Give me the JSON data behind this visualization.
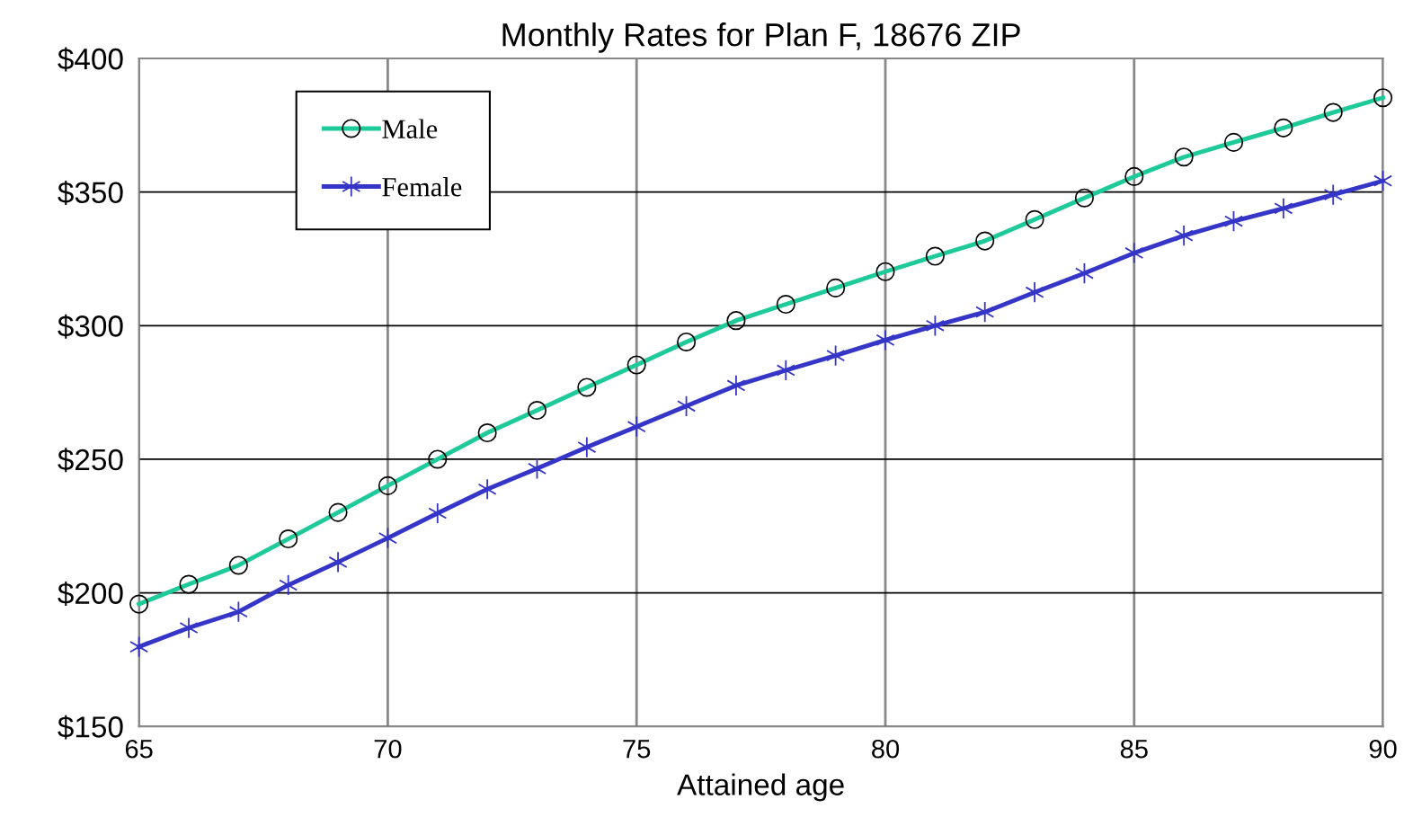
{
  "chart_data": {
    "type": "line",
    "title": "Monthly Rates for Plan F, 18676 ZIP",
    "xlabel": "Attained age",
    "x": [
      65,
      66,
      67,
      68,
      69,
      70,
      71,
      72,
      73,
      74,
      75,
      76,
      77,
      78,
      79,
      80,
      81,
      82,
      83,
      84,
      85,
      86,
      87,
      88,
      89,
      90
    ],
    "xlim": [
      65,
      90
    ],
    "xticks": [
      65,
      70,
      75,
      80,
      85,
      90
    ],
    "ylim": [
      150,
      400
    ],
    "yticks": [
      {
        "value": 150,
        "label": "$150"
      },
      {
        "value": 200,
        "label": "$200"
      },
      {
        "value": 250,
        "label": "$250"
      },
      {
        "value": 300,
        "label": "$300"
      },
      {
        "value": 350,
        "label": "$350"
      },
      {
        "value": 400,
        "label": "$400"
      }
    ],
    "grid": true,
    "legend": "top left",
    "line_style": "solid",
    "series": [
      {
        "name": "Male",
        "color": "#1ec99a",
        "marker": "circle",
        "values": [
          195.8,
          203.2,
          210.3,
          220.2,
          230.1,
          240.1,
          250,
          259.9,
          268.3,
          276.9,
          285.3,
          293.9,
          301.9,
          308,
          314.1,
          320.2,
          326,
          331.7,
          339.7,
          347.8,
          355.8,
          363.1,
          368.6,
          374,
          379.8,
          385.3
        ]
      },
      {
        "name": "Female",
        "color": "#3535c8",
        "marker": "cross",
        "values": [
          179.8,
          186.9,
          192.9,
          202.9,
          211.5,
          220.5,
          229.8,
          238.8,
          246.5,
          254.5,
          262.2,
          269.9,
          277.6,
          283.3,
          288.8,
          294.6,
          300,
          305.1,
          312.5,
          319.6,
          327.2,
          333.7,
          339.1,
          343.9,
          349,
          354.2
        ]
      }
    ]
  }
}
